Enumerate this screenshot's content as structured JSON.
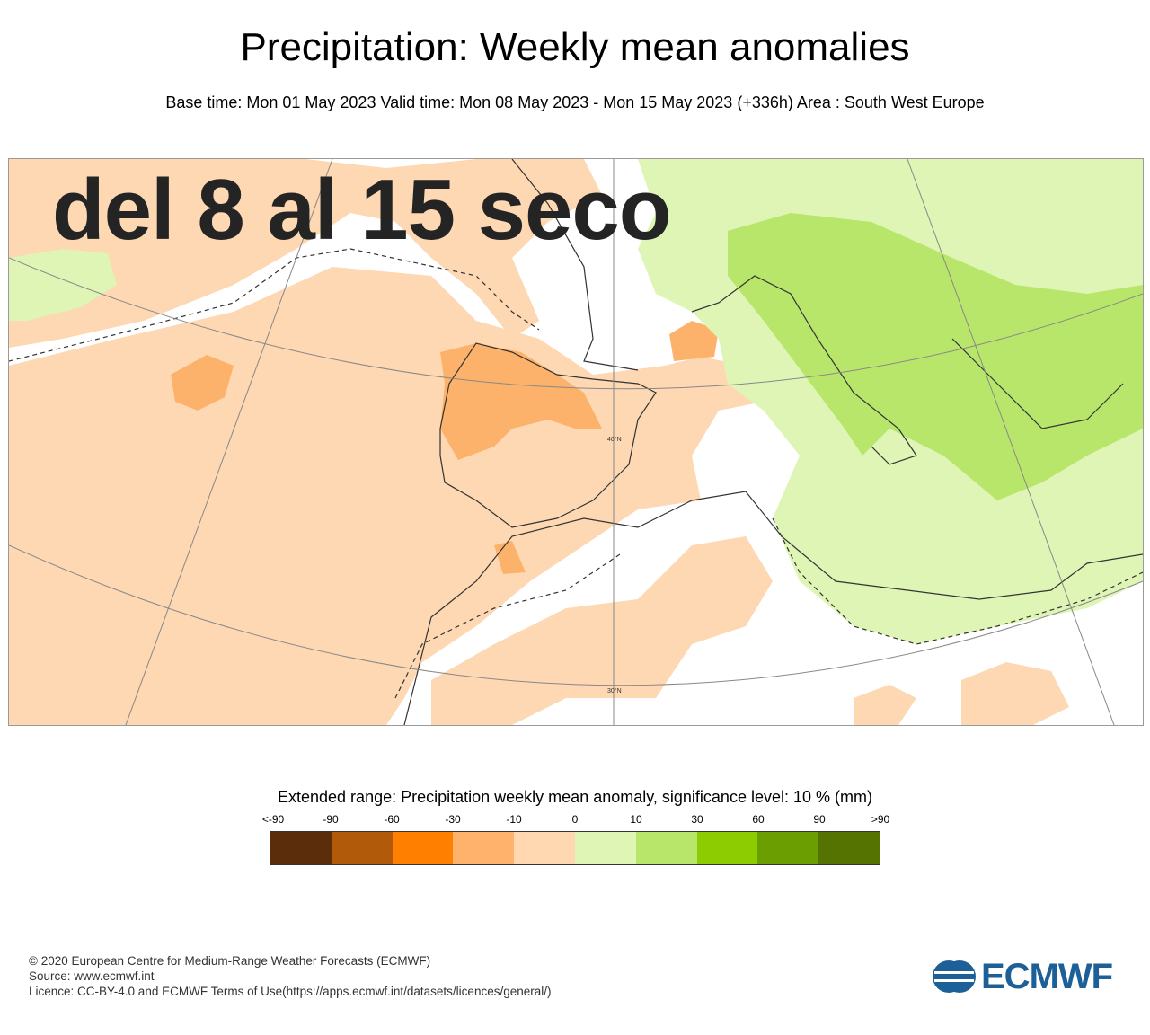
{
  "header": {
    "title": "Precipitation: Weekly mean anomalies",
    "subtitle": "Base time: Mon 01 May 2023 Valid time: Mon 08 May 2023 - Mon 15 May 2023 (+336h) Area : South West Europe"
  },
  "map": {
    "overlay_text": "del 8 al 15 seco",
    "lat_labels": [
      "40°N",
      "30°N"
    ]
  },
  "legend": {
    "title": "Extended range: Precipitation weekly mean anomaly, significance level: 10 % (mm)",
    "ticks": [
      "<-90",
      "-90",
      "-60",
      "-30",
      "-10",
      "0",
      "10",
      "30",
      "60",
      "90",
      ">90"
    ],
    "colors": [
      "#5c2d0a",
      "#b05a0a",
      "#ff8000",
      "#ffb26b",
      "#ffd8b2",
      "#dff5b5",
      "#b8e66b",
      "#8ccc00",
      "#6b9e00",
      "#547300"
    ]
  },
  "footer": {
    "line1": "© 2020 European Centre for Medium-Range Weather Forecasts (ECMWF)",
    "line2": "Source: www.ecmwf.int",
    "line3": "Licence: CC-BY-4.0 and ECMWF Terms of Use(https://apps.ecmwf.int/datasets/licences/general/)"
  },
  "logo": {
    "text": "ECMWF"
  }
}
